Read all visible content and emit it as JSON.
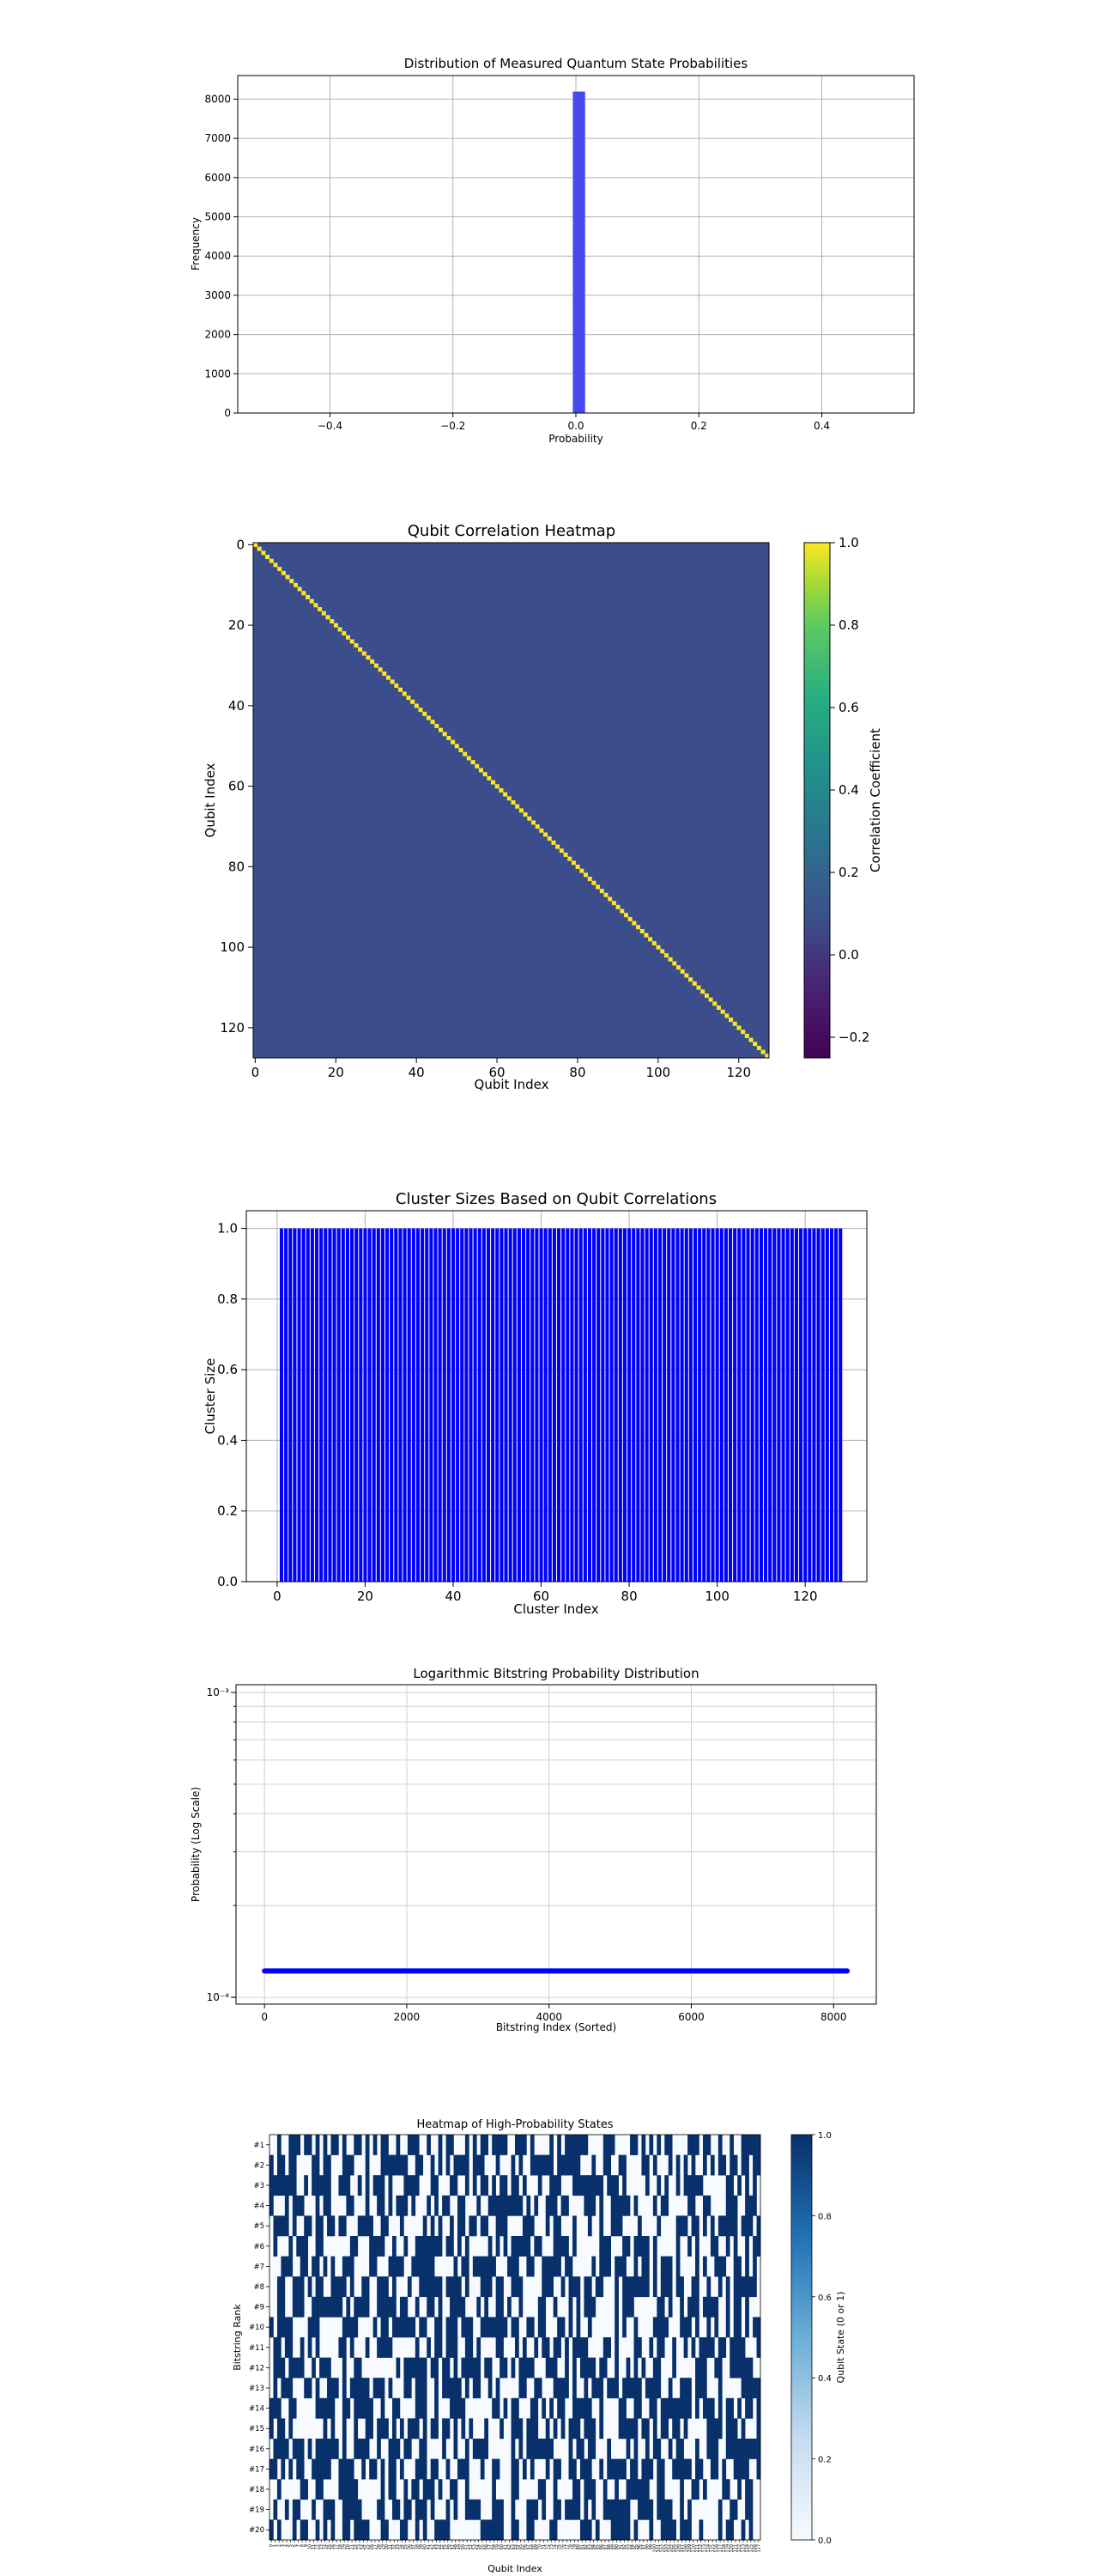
{
  "chart_data": [
    {
      "type": "bar",
      "title": "Distribution of Measured Quantum State Probabilities",
      "xlabel": "Probability",
      "ylabel": "Frequency",
      "xlim": [
        -0.55,
        0.55
      ],
      "ylim": [
        0,
        8600
      ],
      "xticks": [
        -0.4,
        -0.2,
        0.0,
        0.2,
        0.4
      ],
      "xtick_labels": [
        "−0.4",
        "−0.2",
        "0.0",
        "0.2",
        "0.4"
      ],
      "yticks": [
        0,
        1000,
        2000,
        3000,
        4000,
        5000,
        6000,
        7000,
        8000
      ],
      "grid": true,
      "bins": [
        {
          "x0": -0.005,
          "x1": 0.015,
          "count": 8192
        }
      ],
      "color": "#4848ef"
    },
    {
      "type": "heatmap",
      "title": "Qubit Correlation Heatmap",
      "xlabel": "Qubit Index",
      "ylabel": "Qubit Index",
      "size": 128,
      "xticks": [
        0,
        20,
        40,
        60,
        80,
        100,
        120
      ],
      "yticks": [
        0,
        20,
        40,
        60,
        80,
        100,
        120
      ],
      "diagonal_value": 1.0,
      "offdiagonal_value": 0.0,
      "colormap": "viridis",
      "vmin": -0.25,
      "vmax": 1.0,
      "colorbar_label": "Correlation Coefficient",
      "colorbar_ticks": [
        1.0,
        0.8,
        0.6,
        0.4,
        0.2,
        0.0,
        -0.2
      ],
      "colorbar_tick_labels": [
        "1.0",
        "0.8",
        "0.6",
        "0.4",
        "0.2",
        "0.0",
        "−0.2"
      ]
    },
    {
      "type": "bar",
      "title": "Cluster Sizes Based on Qubit Correlations",
      "xlabel": "Cluster Index",
      "ylabel": "Cluster Size",
      "num_clusters": 128,
      "value": 1,
      "xlim": [
        -7,
        134
      ],
      "ylim": [
        0,
        1.05
      ],
      "xticks": [
        0,
        20,
        40,
        60,
        80,
        100,
        120
      ],
      "yticks": [
        0.0,
        0.2,
        0.4,
        0.6,
        0.8,
        1.0
      ],
      "ytick_labels": [
        "0.0",
        "0.2",
        "0.4",
        "0.6",
        "0.8",
        "1.0"
      ],
      "grid": true,
      "color": "#0000ff"
    },
    {
      "type": "line",
      "title": "Logarithmic Bitstring Probability Distribution",
      "xlabel": "Bitstring Index (Sorted)",
      "ylabel": "Probability (Log Scale)",
      "yscale": "log",
      "xlim": [
        -400,
        8600
      ],
      "xticks": [
        0,
        2000,
        4000,
        6000,
        8000
      ],
      "ylim": [
        9.5e-05,
        0.00106
      ],
      "yticks": [
        0.0001,
        0.001
      ],
      "ytick_labels": [
        "10⁻⁴",
        "10⁻³"
      ],
      "x": [
        0,
        8191
      ],
      "y": [
        0.0001220703125,
        0.0001220703125
      ],
      "grid": true,
      "color": "#0000ff"
    },
    {
      "type": "heatmap",
      "title": "Heatmap of High-Probability States",
      "xlabel": "Qubit Index",
      "ylabel": "Bitstring Rank",
      "rows": [
        "#1",
        "#2",
        "#3",
        "#4",
        "#5",
        "#6",
        "#7",
        "#8",
        "#9",
        "#10",
        "#11",
        "#12",
        "#13",
        "#14",
        "#15",
        "#16",
        "#17",
        "#18",
        "#19",
        "#20"
      ],
      "num_qubits": 128,
      "colormap": "Blues",
      "vmin": 0,
      "vmax": 1,
      "colorbar_label": "Qubit State (0 or 1)",
      "colorbar_ticks": [
        1.0,
        0.8,
        0.6,
        0.4,
        0.2,
        0.0
      ],
      "colorbar_tick_labels": [
        "1.0",
        "0.8",
        "0.6",
        "0.4",
        "0.2",
        "0.0"
      ],
      "bits": [
        "00100111011010101101001101010110010011100100101100010101101111001110100001010111111000011100001101010101100001110110010010011111",
        "10110110000110110001110001000111111100110010101011110111000100010100111111011111100010011001100001101000101010100101011011011011",
        "11111110010111110011100101011101000111100011000110010101101011011010001001110001111111101110100000100101001011111000000110101010",
        "10001011100010110000110001001101011101000101011001100010011111111101010011101100001110100111110100001011000001100110000111001110",
        "01111010011011011011000111100110001000001010100101101101100111000011100010110001000100100111000010000100001110110101011111011101",
        "01000101110011000000011000111100100100111111101101010000010101011111011000111101000000111000110111101000001001010001100101001011",
        "00011100110110101001110000110001111001111110000010110111111000111001100111110110000010111011100101101011101000010100111001101010",
        "00110011101011001111010011001110100010011111101111010001110110011100000111001011101101100010111111101011101100110010010101111110",
        "00110011100111111110101111001111101100100110100111100010100110100100001100100010101110000010111000000110100101110111100101101000",
        "10111100001110000001111000010110111111011001101110111001111111011001101100011010100100000010100100001111000111010010100101101011",
        "01101100101010000011010001001111000000100101101110011010000110001010010110110101111000011010000110010110010010101111011011110001",
        "01110111100101110001001100000000010111111011011010111110110011010111100011100101011110110010010101001100010000011100110011111100",
        "01011100011010011101011111011101000110111001011111010110010100000110011000111101001011101110111110111100100111011100010000011111",
        "11100110000011111001101111100100110000111001000111100000001101011000110101011001111100100001100110011011111111010111010110101101",
        "10110100000000101001001001101110101011101011011010101000100010011101110010101011101110100001111101101011011010000011110111010001",
        "01111011101011111101001111001001110110011000010010010111100000010101111111000010110110001000010100101100101100010011100111111111",
        "11010101100111110011110010110101101000111011001001110001001100011010100010110011011100101111101101110110011111011001101001111001",
        "00100000110011000011111000000101100101101110100110010000001000011000001100100001101110010010011111100110000100110100001100101100",
        "01001011000100111001111100001100110110111010001010011110001110010001110100110111101010011111110011110111100101000000010011001100",
        "10100010110010101001101111000110001100101001111000000001111110011001100001100000011101000111110100010011110111001000010110010100"
      ]
    }
  ]
}
